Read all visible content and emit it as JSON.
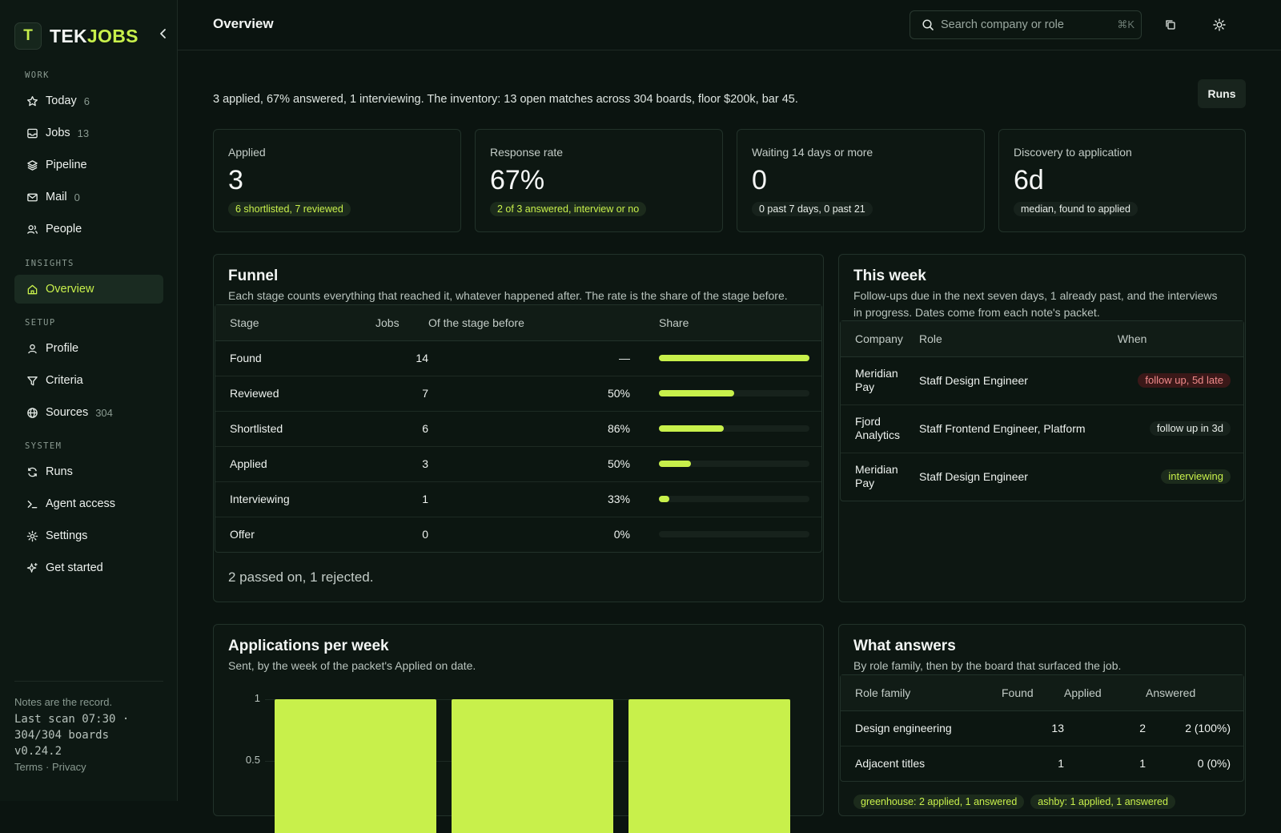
{
  "brand": {
    "mark": "T",
    "name_a": "TEK",
    "name_b": "JOBS",
    "accent": "#c8f04b"
  },
  "sidebar": {
    "groups": [
      {
        "heading": "WORK",
        "items": [
          {
            "label": "Today",
            "count": "6",
            "icon": "star-icon"
          },
          {
            "label": "Jobs",
            "count": "13",
            "icon": "inbox-icon"
          },
          {
            "label": "Pipeline",
            "count": "",
            "icon": "layers-icon"
          },
          {
            "label": "Mail",
            "count": "0",
            "icon": "mail-icon"
          },
          {
            "label": "People",
            "count": "",
            "icon": "people-icon"
          }
        ]
      },
      {
        "heading": "INSIGHTS",
        "items": [
          {
            "label": "Overview",
            "count": "",
            "icon": "home-icon",
            "active": true
          }
        ]
      },
      {
        "heading": "SETUP",
        "items": [
          {
            "label": "Profile",
            "count": "",
            "icon": "user-icon"
          },
          {
            "label": "Criteria",
            "count": "",
            "icon": "filter-icon"
          },
          {
            "label": "Sources",
            "count": "304",
            "icon": "globe-icon"
          }
        ]
      },
      {
        "heading": "SYSTEM",
        "items": [
          {
            "label": "Runs",
            "count": "",
            "icon": "refresh-icon"
          },
          {
            "label": "Agent access",
            "count": "",
            "icon": "terminal-icon"
          },
          {
            "label": "Settings",
            "count": "",
            "icon": "gear-icon"
          },
          {
            "label": "Get started",
            "count": "",
            "icon": "sparkle-icon"
          }
        ]
      }
    ],
    "footer": {
      "note": "Notes are the record.",
      "scan_line1": "Last scan 07:30 ·",
      "scan_line2": "304/304 boards",
      "version": "v0.24.2",
      "terms": "Terms",
      "sep": " · ",
      "privacy": "Privacy"
    }
  },
  "topbar": {
    "title": "Overview",
    "search_placeholder": "Search company or role",
    "search_kbd": "⌘K"
  },
  "summary": {
    "n_applied": "3",
    "t1": " applied, ",
    "pct_answered": "67%",
    "t2": " answered, ",
    "n_interviewing": "1",
    "t3": " interviewing. The inventory: 13 open matches across 304 boards, floor $200k, bar 45."
  },
  "runs_button": "Runs",
  "stats": [
    {
      "label": "Applied",
      "value": "3",
      "pill": "6 shortlisted, 7 reviewed",
      "tone": "green"
    },
    {
      "label": "Response rate",
      "value": "67%",
      "pill": "2 of 3 answered, interview or no",
      "tone": "green"
    },
    {
      "label": "Waiting 14 days or more",
      "value": "0",
      "pill": "0 past 7 days, 0 past 21",
      "tone": "neutral"
    },
    {
      "label": "Discovery to application",
      "value": "6d",
      "pill": "median, found to applied",
      "tone": "neutral"
    }
  ],
  "funnel": {
    "title": "Funnel",
    "subtitle": "Each stage counts everything that reached it, whatever happened after. The rate is the share of the stage before.",
    "headers": {
      "stage": "Stage",
      "jobs": "Jobs",
      "prev": "Of the stage before",
      "share": "Share"
    },
    "rows": [
      {
        "stage": "Found",
        "jobs": "14",
        "prev": "—",
        "share": 1.0
      },
      {
        "stage": "Reviewed",
        "jobs": "7",
        "prev": "50%",
        "share": 0.5
      },
      {
        "stage": "Shortlisted",
        "jobs": "6",
        "prev": "86%",
        "share": 0.4286
      },
      {
        "stage": "Applied",
        "jobs": "3",
        "prev": "50%",
        "share": 0.2143
      },
      {
        "stage": "Interviewing",
        "jobs": "1",
        "prev": "33%",
        "share": 0.0714
      },
      {
        "stage": "Offer",
        "jobs": "0",
        "prev": "0%",
        "share": 0
      }
    ],
    "footer": "2 passed on, 1 rejected."
  },
  "week": {
    "title": "This week",
    "subtitle_1": "Follow-ups due in the next seven days, 1 already past, and the interviews",
    "subtitle_2": "in progress. Dates come from each note's packet.",
    "headers": {
      "company": "Company",
      "role": "Role",
      "when": "When"
    },
    "rows": [
      {
        "company_1": "Meridian",
        "company_2": "Pay",
        "role": "Staff Design Engineer",
        "when": "follow up, 5d late",
        "tone": "late"
      },
      {
        "company_1": "Fjord",
        "company_2": "Analytics",
        "role": "Staff Frontend Engineer, Platform",
        "when": "follow up in 3d",
        "tone": "soon"
      },
      {
        "company_1": "Meridian",
        "company_2": "Pay",
        "role": "Staff Design Engineer",
        "when": "interviewing",
        "tone": "active"
      }
    ]
  },
  "apps": {
    "title": "Applications per week",
    "subtitle": "Sent, by the week of the packet's Applied on date."
  },
  "chart_data": {
    "type": "bar",
    "title": "Applications per week",
    "subtitle": "Sent, by the week of the packet's Applied on date.",
    "categories": [
      "",
      "",
      ""
    ],
    "values": [
      1,
      1,
      1
    ],
    "y_ticks": [
      "1",
      "0.5"
    ],
    "ylim": [
      0,
      1
    ],
    "grid": true,
    "color": "#c8f04b"
  },
  "answers": {
    "title": "What answers",
    "subtitle": "By role family, then by the board that surfaced the job.",
    "headers": {
      "family": "Role family",
      "found": "Found",
      "applied": "Applied",
      "answered": "Answered"
    },
    "rows": [
      {
        "family": "Design engineering",
        "found": "13",
        "applied": "2",
        "answered": "2 (100%)"
      },
      {
        "family": "Adjacent titles",
        "found": "1",
        "applied": "1",
        "answered": "0 (0%)"
      }
    ],
    "boards": [
      "greenhouse: 2 applied, 1 answered",
      "ashby: 1 applied, 1 answered"
    ]
  }
}
